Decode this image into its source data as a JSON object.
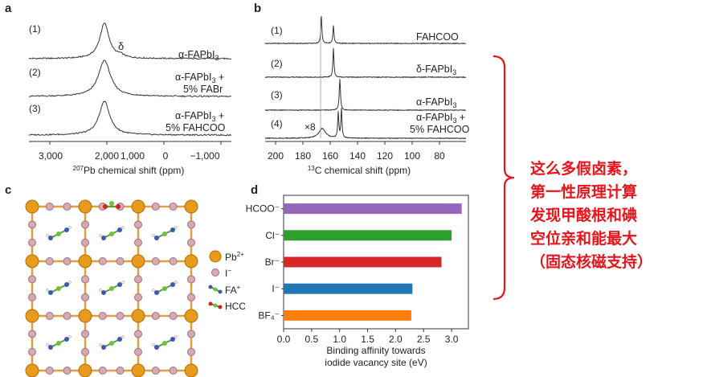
{
  "panel_labels": {
    "a": "a",
    "b": "b",
    "c": "c",
    "d": "d"
  },
  "panel_a": {
    "traces": [
      {
        "index": "(1)",
        "label": "α-FAPbI",
        "sub": "3",
        "extra": ""
      },
      {
        "index": "(2)",
        "label": "α-FAPbI",
        "sub": "3",
        "extra": " +",
        "line2": "5% FABr"
      },
      {
        "index": "(3)",
        "label": "α-FAPbI",
        "sub": "3",
        "extra": " +",
        "line2": "5% FAHCOO"
      }
    ],
    "delta": "δ",
    "xticks": [
      "3,000",
      "2,000",
      "1,000",
      "0",
      "−1,000"
    ],
    "xlabel_sup": "207",
    "xlabel": "Pb chemical shift (ppm)"
  },
  "panel_b": {
    "traces": [
      {
        "index": "(1)",
        "label": "FAHCOO"
      },
      {
        "index": "(2)",
        "label": "δ-FAPbI",
        "sub": "3"
      },
      {
        "index": "(3)",
        "label": "α-FAPbI",
        "sub": "3"
      },
      {
        "index": "(4)",
        "label": "α-FAPbI",
        "sub": "3",
        "extra": " +",
        "line2": "5% FAHCOO"
      }
    ],
    "x8": "×8",
    "xticks": [
      "200",
      "180",
      "160",
      "140",
      "120",
      "100",
      "80"
    ],
    "xlabel_sup": "13",
    "xlabel": "C chemical shift (ppm)"
  },
  "panel_c": {
    "legend": [
      {
        "label": "Pb",
        "sup": "2+"
      },
      {
        "label": "I",
        "sup": "−"
      },
      {
        "label": "FA",
        "sup": "+"
      },
      {
        "label": "HCOO",
        "sup": "−"
      }
    ]
  },
  "chart_data": {
    "type": "bar",
    "orientation": "horizontal",
    "categories": [
      "HCOO⁻",
      "Cl⁻",
      "Br⁻",
      "I⁻",
      "BF₄⁻"
    ],
    "values": [
      3.18,
      3.0,
      2.82,
      2.3,
      2.28
    ],
    "colors": [
      "#9467bd",
      "#2ca02c",
      "#d62728",
      "#1f77b4",
      "#ff7f0e"
    ],
    "xlim": [
      0,
      3.3
    ],
    "xticks": [
      "0.0",
      "0.5",
      "1.0",
      "1.5",
      "2.0",
      "2.5",
      "3.0"
    ],
    "xlabel_line1": "Binding affinity towards",
    "xlabel_line2": "iodide vacancy site (eV)",
    "grid": false
  },
  "annotation": {
    "lines": [
      "这么多假卤素，",
      "第一性原理计算",
      "发现甲酸根和碘",
      "空位亲和能最大",
      "（固态核磁支持）"
    ],
    "color": "#e8141c"
  }
}
